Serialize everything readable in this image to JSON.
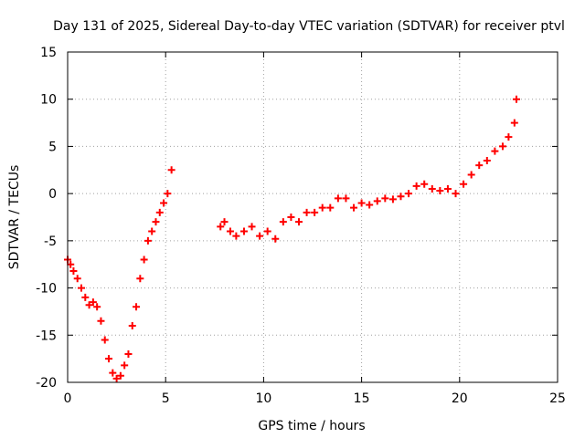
{
  "chart_data": {
    "type": "scatter",
    "title": "Day 131 of 2025, Sidereal Day-to-day VTEC variation (SDTVAR) for receiver ptvl",
    "xlabel": "GPS time / hours",
    "ylabel": "SDTVAR / TECUs",
    "xlim": [
      0,
      25
    ],
    "ylim": [
      -20,
      15
    ],
    "xticks": [
      0,
      5,
      10,
      15,
      20,
      25
    ],
    "yticks": [
      -20,
      -15,
      -10,
      -5,
      0,
      5,
      10,
      15
    ],
    "grid": true,
    "marker": "+",
    "color": "#ff0000",
    "series": [
      {
        "name": "SDTVAR",
        "x": [
          0.0,
          0.15,
          0.3,
          0.5,
          0.7,
          0.9,
          1.1,
          1.3,
          1.5,
          1.7,
          1.9,
          2.1,
          2.3,
          2.5,
          2.7,
          2.9,
          3.1,
          3.3,
          3.5,
          3.7,
          3.9,
          4.1,
          4.3,
          4.5,
          4.7,
          4.9,
          5.1,
          5.3,
          7.8,
          8.0,
          8.3,
          8.6,
          9.0,
          9.4,
          9.8,
          10.2,
          10.6,
          11.0,
          11.4,
          11.8,
          12.2,
          12.6,
          13.0,
          13.4,
          13.8,
          14.2,
          14.6,
          15.0,
          15.4,
          15.8,
          16.2,
          16.6,
          17.0,
          17.4,
          17.8,
          18.2,
          18.6,
          19.0,
          19.4,
          19.8,
          20.2,
          20.6,
          21.0,
          21.4,
          21.8,
          22.2,
          22.5,
          22.8,
          22.9
        ],
        "y": [
          -7.0,
          -7.5,
          -8.2,
          -9.0,
          -10.0,
          -11.0,
          -11.8,
          -11.5,
          -12.0,
          -13.5,
          -15.5,
          -17.5,
          -19.0,
          -19.6,
          -19.3,
          -18.2,
          -17.0,
          -14.0,
          -12.0,
          -9.0,
          -7.0,
          -5.0,
          -4.0,
          -3.0,
          -2.0,
          -1.0,
          0.0,
          2.5,
          -3.5,
          -3.0,
          -4.0,
          -4.5,
          -4.0,
          -3.5,
          -4.5,
          -4.0,
          -4.8,
          -3.0,
          -2.5,
          -3.0,
          -2.0,
          -2.0,
          -1.5,
          -1.5,
          -0.5,
          -0.5,
          -1.5,
          -1.0,
          -1.2,
          -0.8,
          -0.5,
          -0.6,
          -0.3,
          0.0,
          0.8,
          1.0,
          0.5,
          0.3,
          0.5,
          0.0,
          1.0,
          2.0,
          3.0,
          3.5,
          4.5,
          5.0,
          6.0,
          7.5,
          10.0
        ]
      }
    ]
  }
}
